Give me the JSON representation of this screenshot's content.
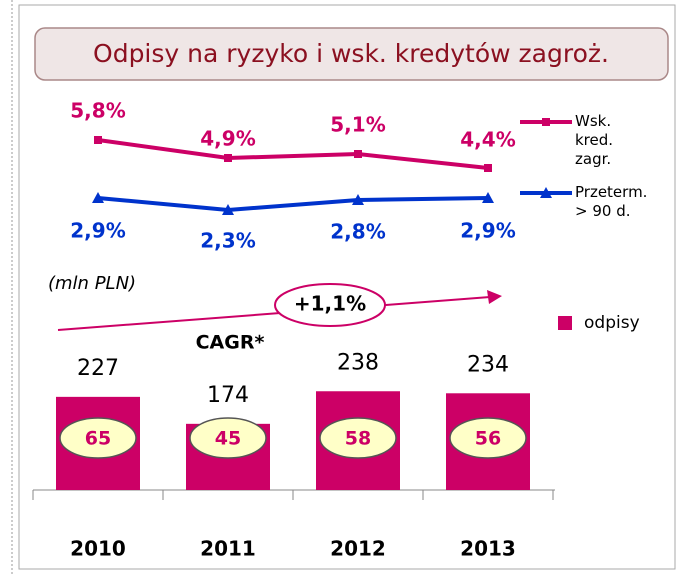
{
  "chart_data": [
    {
      "type": "line",
      "title": "Odpisy na ryzyko i wsk. kredytów zagroż.",
      "ylim": [
        2,
        6
      ],
      "series": [
        {
          "name": "Wsk. kred. zagr.",
          "color": "#cc0066",
          "marker": "square",
          "values": [
            5.8,
            4.9,
            5.1,
            4.4
          ],
          "value_labels": [
            "5,8%",
            "4,9%",
            "5,1%",
            "4,4%"
          ]
        },
        {
          "name": "Przeterm. > 90 d.",
          "color": "#0033cc",
          "marker": "triangle",
          "values": [
            2.9,
            2.3,
            2.8,
            2.9
          ],
          "value_labels": [
            "2,9%",
            "2,3%",
            "2,8%",
            "2,9%"
          ]
        }
      ]
    },
    {
      "type": "bar",
      "unit": "(mln PLN)",
      "categories": [
        "2010",
        "2011",
        "2012",
        "2013"
      ],
      "ylim": [
        44,
        281
      ],
      "series": [
        {
          "name": "odpisy",
          "color": "#cc0066",
          "values": [
            227,
            174,
            238,
            234
          ]
        },
        {
          "values": [
            65,
            45,
            58,
            56
          ]
        }
      ],
      "annotations": [
        {
          "text": "+1,1%"
        },
        {
          "text": "CAGR*"
        }
      ]
    }
  ]
}
